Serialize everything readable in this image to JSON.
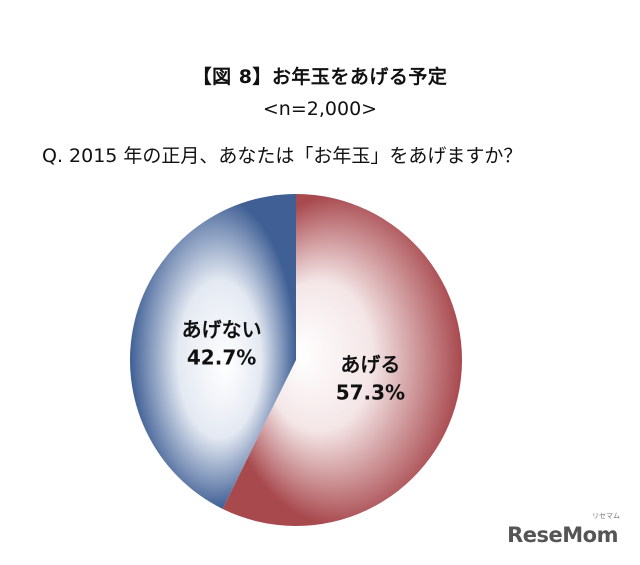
{
  "chart_data": {
    "type": "pie",
    "title": "【図 8】お年玉をあげる予定",
    "subtitle": "<n=2,000>",
    "question": "Q. 2015 年の正月、あなたは「お年玉」をあげますか？",
    "slices": [
      {
        "label": "あげる",
        "value": 57.3,
        "value_label": "57.3%",
        "color": "#a8494e"
      },
      {
        "label": "あげない",
        "value": 42.7,
        "value_label": "42.7%",
        "color": "#3f5f95"
      }
    ],
    "start": "12 o'clock",
    "direction": "clockwise"
  },
  "logo": {
    "text_a": "Rese",
    "text_b": "Mom",
    "sub": "リセマム"
  }
}
